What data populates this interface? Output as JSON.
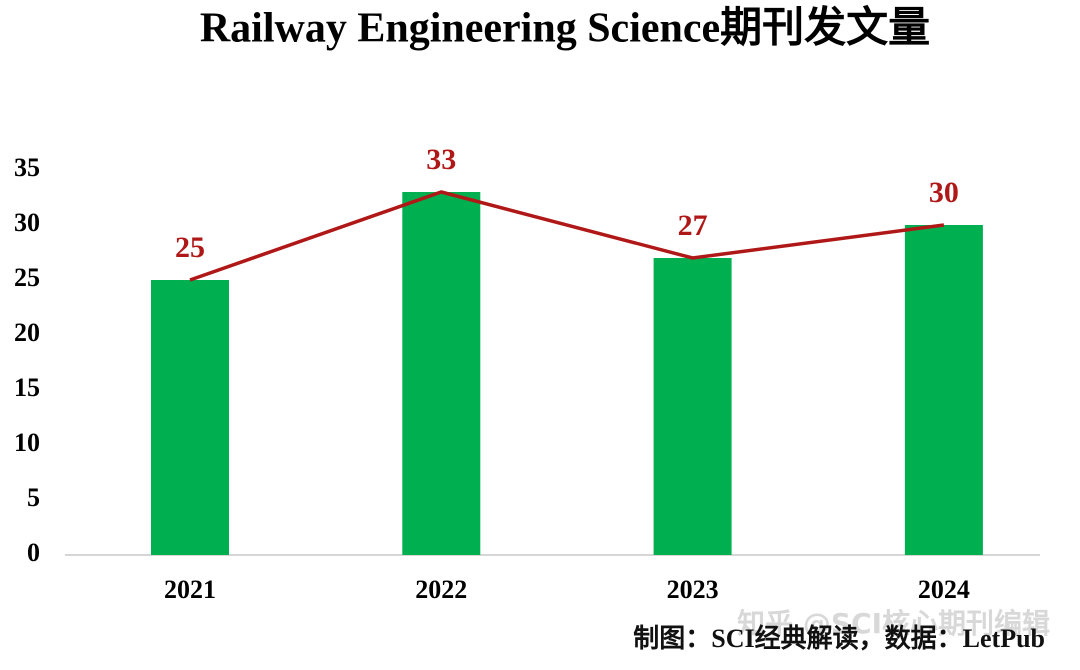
{
  "chart_data": {
    "type": "bar",
    "title": "Railway Engineering Science期刊发文量",
    "categories": [
      "2021",
      "2022",
      "2023",
      "2024"
    ],
    "values": [
      25,
      33,
      27,
      30
    ],
    "color": "#00b050",
    "line_color": "#b01818",
    "show_line": true,
    "ylim": [
      0,
      35
    ],
    "yticks": [
      0,
      5,
      10,
      15,
      20,
      25,
      30,
      35
    ],
    "grid": false,
    "source": "制图：SCI经典解读，数据：LetPub",
    "watermark": "知乎 @SCI核心期刊编辑"
  }
}
